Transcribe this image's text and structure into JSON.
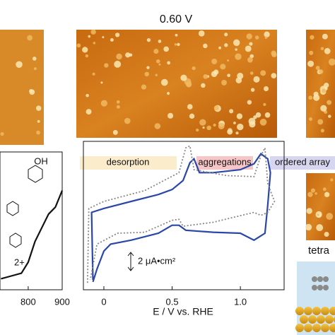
{
  "header": {
    "title": "0.60 V"
  },
  "labels": {
    "oh": "OH",
    "charge": "2+",
    "tetra": "tetra",
    "scale": "2 μA•cm²"
  },
  "chart_data": [
    {
      "type": "line",
      "xlabel": "E / V vs. RHE",
      "xlim": [
        -0.15,
        1.31
      ],
      "xticks": [
        0,
        0.5,
        {
          "value": 1,
          "label": "1.0"
        }
      ],
      "ylim": [
        -6.4,
        8.2
      ],
      "regions": [
        "desorption",
        "aggregations",
        "ordered array"
      ],
      "series": [
        {
          "color": "#2a47a8",
          "style": "solid",
          "x": [
            -0.08,
            -0.09,
            0,
            0.2,
            0.4,
            0.5,
            0.58,
            0.63,
            0.66,
            0.7,
            0.8,
            1.0,
            1.1,
            1.15,
            1.2,
            1.22,
            1.2,
            1.18,
            1.1,
            1.0,
            0.8,
            0.6,
            0.55,
            0.5,
            0.4,
            0.2,
            0.05,
            0,
            -0.05,
            -0.08
          ],
          "values": [
            -5.4,
            1.4,
            1.8,
            2.5,
            3.2,
            3.7,
            4.6,
            6.4,
            6.8,
            5.4,
            5.4,
            5.7,
            6.3,
            7.3,
            6.8,
            5.4,
            2.1,
            -0.7,
            -1.4,
            -0.7,
            -0.6,
            -0.4,
            0.1,
            0.1,
            -0.7,
            -1.4,
            -1.8,
            -2.5,
            -4.3,
            -5.6
          ]
        },
        {
          "color": "#888888",
          "style": "dotted",
          "x": [
            -0.12,
            -0.11,
            0,
            0.3,
            0.55,
            0.6,
            0.63,
            0.66,
            0.9,
            1.1,
            1.15,
            1.18,
            1.2,
            1.25,
            1.2,
            1.15,
            1.1,
            0.8,
            0.58,
            0.55,
            0.5,
            0.3,
            0.1,
            -0.05,
            -0.1
          ],
          "values": [
            -5.7,
            1.8,
            2.5,
            3.6,
            5.4,
            7.9,
            8.1,
            5.7,
            5.1,
            5.0,
            7.1,
            7.9,
            4.3,
            2.5,
            1.4,
            1.1,
            1.4,
            0.4,
            0,
            0.7,
            0.6,
            -0.6,
            -0.7,
            -1.8,
            -5.4
          ]
        }
      ]
    },
    {
      "type": "line",
      "xlim": [
        717,
        900
      ],
      "xticks": [
        800,
        900
      ],
      "ylim": [
        0,
        1
      ],
      "series": [
        {
          "color": "#111111",
          "x": [
            720,
            750,
            780,
            800,
            820,
            840,
            860,
            880,
            900
          ],
          "values": [
            0.08,
            0.1,
            0.12,
            0.2,
            0.35,
            0.45,
            0.55,
            0.6,
            0.72
          ]
        }
      ]
    }
  ]
}
